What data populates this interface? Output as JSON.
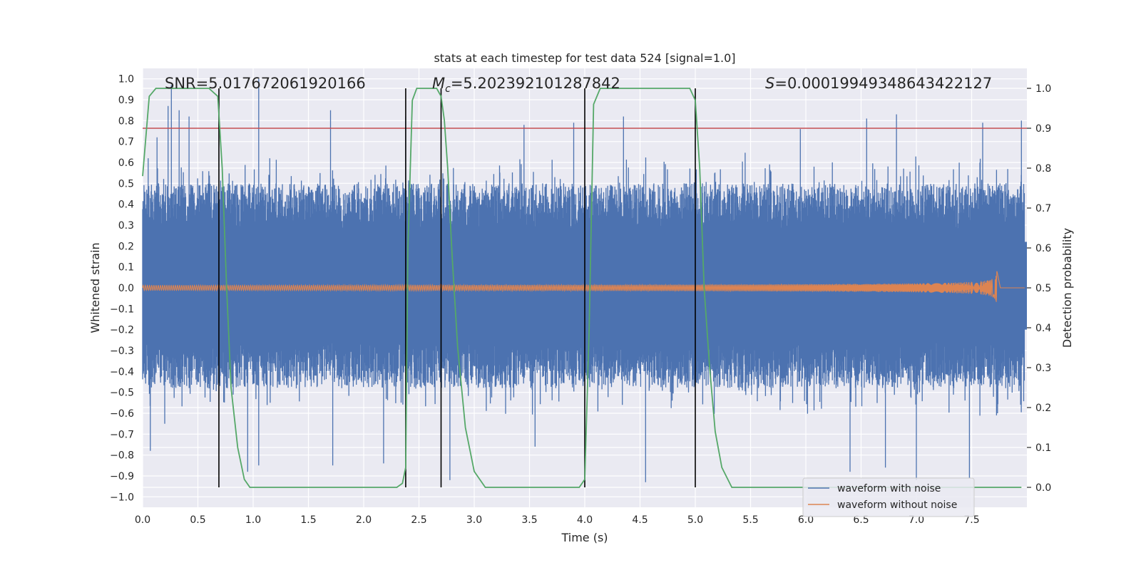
{
  "chart_data": {
    "type": "line",
    "title": "stats at each timestep for test data 524 [signal=1.0]",
    "xlabel": "Time (s)",
    "ylabel": "Whitened strain",
    "ylabel_right": "Detection probability",
    "xlim": [
      0.0,
      8.0
    ],
    "ylim": [
      -1.05,
      1.05
    ],
    "ylim_right": [
      -0.05,
      1.05
    ],
    "x_ticks": [
      0.0,
      0.5,
      1.0,
      1.5,
      2.0,
      2.5,
      3.0,
      3.5,
      4.0,
      4.5,
      5.0,
      5.5,
      6.0,
      6.5,
      7.0,
      7.5
    ],
    "x_tick_labels": [
      "0.0",
      "0.5",
      "1.0",
      "1.5",
      "2.0",
      "2.5",
      "3.0",
      "3.5",
      "4.0",
      "4.5",
      "5.0",
      "5.5",
      "6.0",
      "6.5",
      "7.0",
      "7.5"
    ],
    "y_ticks": [
      1.0,
      0.9,
      0.8,
      0.7,
      0.6,
      0.5,
      0.4,
      0.3,
      0.2,
      0.1,
      0.0,
      -0.1,
      -0.2,
      -0.3,
      -0.4,
      -0.5,
      -0.6,
      -0.7,
      -0.8,
      -0.9,
      -1.0
    ],
    "y_tick_labels": [
      "1.0",
      "0.9",
      "0.8",
      "0.7",
      "0.6",
      "0.5",
      "0.4",
      "0.3",
      "0.2",
      "0.1",
      "0.0",
      "−0.1",
      "−0.2",
      "−0.3",
      "−0.4",
      "−0.5",
      "−0.6",
      "−0.7",
      "−0.8",
      "−0.9",
      "−1.0"
    ],
    "y_right_ticks": [
      1.0,
      0.9,
      0.8,
      0.7,
      0.6,
      0.5,
      0.4,
      0.3,
      0.2,
      0.1,
      0.0
    ],
    "y_right_tick_labels": [
      "1.0",
      "0.9",
      "0.8",
      "0.7",
      "0.6",
      "0.5",
      "0.4",
      "0.3",
      "0.2",
      "0.1",
      "0.0"
    ],
    "grid": true,
    "annotations": {
      "snr": "SNR=5.017672061920166",
      "mc_symbol": "M",
      "mc_sub": "c",
      "mc_value": "=5.202392101287842",
      "s_symbol": "S",
      "s_value": "=0.00019949348643422127"
    },
    "threshold": {
      "y_right": 0.9,
      "color": "#c44e52"
    },
    "vlines_x": [
      0.69,
      2.38,
      2.7,
      4.0,
      5.0
    ],
    "series": [
      {
        "name": "waveform with noise",
        "color": "#4c72b0",
        "axis": "left",
        "description": "dense whitened noise, envelope roughly ±0.3 to ±0.6 with spikes up to ±1.0",
        "spikes": [
          {
            "x": 0.05,
            "y": 0.62
          },
          {
            "x": 0.13,
            "y": 0.72
          },
          {
            "x": 0.23,
            "y": 0.87
          },
          {
            "x": 0.26,
            "y": 0.97
          },
          {
            "x": 0.33,
            "y": 0.85
          },
          {
            "x": 0.42,
            "y": 0.82
          },
          {
            "x": 1.05,
            "y": 1.0
          },
          {
            "x": 1.7,
            "y": 0.85
          },
          {
            "x": 1.15,
            "y": 0.62
          },
          {
            "x": 2.38,
            "y": 0.82
          },
          {
            "x": 3.45,
            "y": 0.78
          },
          {
            "x": 3.9,
            "y": 0.79
          },
          {
            "x": 4.35,
            "y": 0.82
          },
          {
            "x": 5.95,
            "y": 0.76
          },
          {
            "x": 6.55,
            "y": 0.81
          },
          {
            "x": 6.82,
            "y": 0.83
          },
          {
            "x": 7.6,
            "y": 0.79
          },
          {
            "x": 7.95,
            "y": 0.8
          },
          {
            "x": 0.07,
            "y": -0.78
          },
          {
            "x": 0.2,
            "y": -0.65
          },
          {
            "x": 0.95,
            "y": -0.88
          },
          {
            "x": 1.05,
            "y": -0.85
          },
          {
            "x": 1.72,
            "y": -0.85
          },
          {
            "x": 2.18,
            "y": -0.84
          },
          {
            "x": 2.78,
            "y": -0.92
          },
          {
            "x": 3.55,
            "y": -0.76
          },
          {
            "x": 4.55,
            "y": -0.93
          },
          {
            "x": 6.4,
            "y": -0.88
          },
          {
            "x": 6.72,
            "y": -0.86
          },
          {
            "x": 7.0,
            "y": -0.92
          },
          {
            "x": 7.48,
            "y": -0.91
          }
        ]
      },
      {
        "name": "waveform without noise",
        "color": "#dd8452",
        "axis": "left",
        "description": "inspiral chirp, amplitude ~0.01 growing to ~0.14 with merger at 7.73 s",
        "start_x": 0.0,
        "merger_x": 7.73,
        "amplitude_start": 0.012,
        "amplitude_peak": 0.14
      },
      {
        "name": "detection probability",
        "color": "#55a868",
        "axis": "right",
        "x": [
          0.0,
          0.06,
          0.12,
          0.25,
          0.4,
          0.6,
          0.68,
          0.72,
          0.76,
          0.8,
          0.86,
          0.92,
          0.97,
          1.2,
          2.0,
          2.3,
          2.35,
          2.38,
          2.4,
          2.44,
          2.48,
          2.55,
          2.62,
          2.66,
          2.7,
          2.73,
          2.76,
          2.8,
          2.85,
          2.92,
          3.0,
          3.1,
          3.5,
          3.95,
          4.0,
          4.04,
          4.08,
          4.14,
          4.2,
          4.5,
          4.95,
          5.0,
          5.04,
          5.08,
          5.13,
          5.18,
          5.24,
          5.33,
          6.0,
          7.0,
          7.95
        ],
        "y": [
          0.78,
          0.98,
          1.0,
          1.0,
          1.0,
          1.0,
          0.98,
          0.8,
          0.5,
          0.25,
          0.1,
          0.02,
          0.0,
          0.0,
          0.0,
          0.0,
          0.01,
          0.05,
          0.6,
          0.97,
          1.0,
          1.0,
          1.0,
          1.0,
          0.98,
          0.92,
          0.8,
          0.58,
          0.35,
          0.15,
          0.04,
          0.0,
          0.0,
          0.0,
          0.02,
          0.4,
          0.96,
          1.0,
          1.0,
          1.0,
          1.0,
          0.97,
          0.8,
          0.5,
          0.3,
          0.14,
          0.05,
          0.0,
          0.0,
          0.0,
          0.0
        ]
      }
    ],
    "legend": {
      "placement": "lower-right",
      "entries": [
        {
          "label": "waveform with noise",
          "color": "#4c72b0"
        },
        {
          "label": "waveform without noise",
          "color": "#dd8452"
        }
      ]
    }
  }
}
